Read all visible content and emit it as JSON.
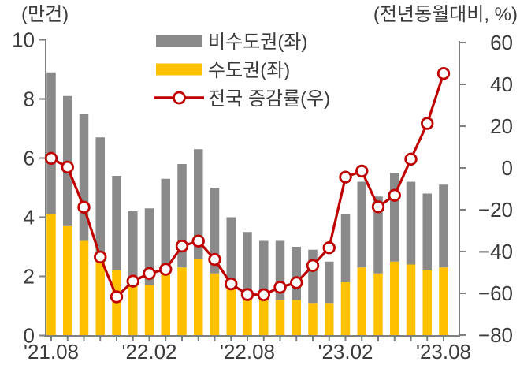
{
  "chart": {
    "left_axis_title": "(만건)",
    "right_axis_title": "(전년동월대비, %)",
    "legend": [
      {
        "label": "비수도권(좌)",
        "swatch": "bar",
        "color": "#8a8a8a"
      },
      {
        "label": "수도권(좌)",
        "swatch": "bar",
        "color": "#ffc000"
      },
      {
        "label": "전국 증감률(우)",
        "swatch": "line",
        "color": "#c00000"
      }
    ]
  },
  "chart_data": {
    "type": "bar",
    "subtype": "stacked-bar-with-line",
    "title": "",
    "grid": false,
    "legend_position": "top-center",
    "categories": [
      "'21.08",
      "'21.09",
      "'21.10",
      "'21.11",
      "'21.12",
      "'22.01",
      "'22.02",
      "'22.03",
      "'22.04",
      "'22.05",
      "'22.06",
      "'22.07",
      "'22.08",
      "'22.09",
      "'22.10",
      "'22.11",
      "'22.12",
      "'23.01",
      "'23.02",
      "'23.03",
      "'23.04",
      "'23.05",
      "'23.06",
      "'23.07",
      "'23.08"
    ],
    "x_axis_shown_labels": [
      "'21.08",
      "'22.02",
      "'22.08",
      "'23.02",
      "'23.08"
    ],
    "x_axis_shown_label_indices": [
      0,
      6,
      12,
      18,
      24
    ],
    "left_axis": {
      "title": "(만건)",
      "min": 0,
      "max": 10,
      "ticks": [
        10,
        8,
        6,
        4,
        2,
        0
      ]
    },
    "right_axis": {
      "title": "(전년동월대비, %)",
      "min": -80,
      "max": 60,
      "ticks": [
        60,
        40,
        20,
        0,
        -20,
        -40,
        -60,
        -80
      ]
    },
    "series": [
      {
        "name": "비수도권(좌)",
        "type": "bar",
        "stack": "total",
        "stack_order": "top",
        "axis": "left",
        "color": "#8a8a8a",
        "values": [
          4.8,
          4.4,
          4.3,
          4.0,
          3.2,
          2.5,
          2.6,
          3.2,
          3.5,
          3.7,
          2.9,
          2.4,
          2.2,
          2.0,
          2.0,
          1.8,
          1.8,
          1.4,
          2.3,
          2.9,
          2.6,
          3.0,
          2.8,
          2.6,
          2.8
        ]
      },
      {
        "name": "수도권(좌)",
        "type": "bar",
        "stack": "total",
        "stack_order": "bottom",
        "axis": "left",
        "color": "#ffc000",
        "values": [
          4.1,
          3.7,
          3.2,
          2.7,
          2.2,
          1.7,
          1.7,
          2.1,
          2.3,
          2.6,
          2.1,
          1.6,
          1.3,
          1.2,
          1.2,
          1.2,
          1.1,
          1.1,
          1.8,
          2.3,
          2.1,
          2.5,
          2.4,
          2.2,
          2.3
        ]
      },
      {
        "name": "전국 증감률(우)",
        "type": "line",
        "axis": "right",
        "color": "#c00000",
        "marker": "open-circle",
        "values": [
          4.6,
          0.4,
          -18.8,
          -42.6,
          -61.7,
          -54.2,
          -50.5,
          -48.5,
          -37.4,
          -35.0,
          -43.8,
          -55.5,
          -60.6,
          -60.7,
          -57.1,
          -54.9,
          -46.7,
          -38.2,
          -4.4,
          -1.5,
          -18.6,
          -13.1,
          4.2,
          21.3,
          45.2
        ]
      }
    ]
  },
  "style": {
    "axis_color": "#7f7f7f",
    "text_color": "#3b3b3b",
    "marker_fill": "#ffffff"
  }
}
